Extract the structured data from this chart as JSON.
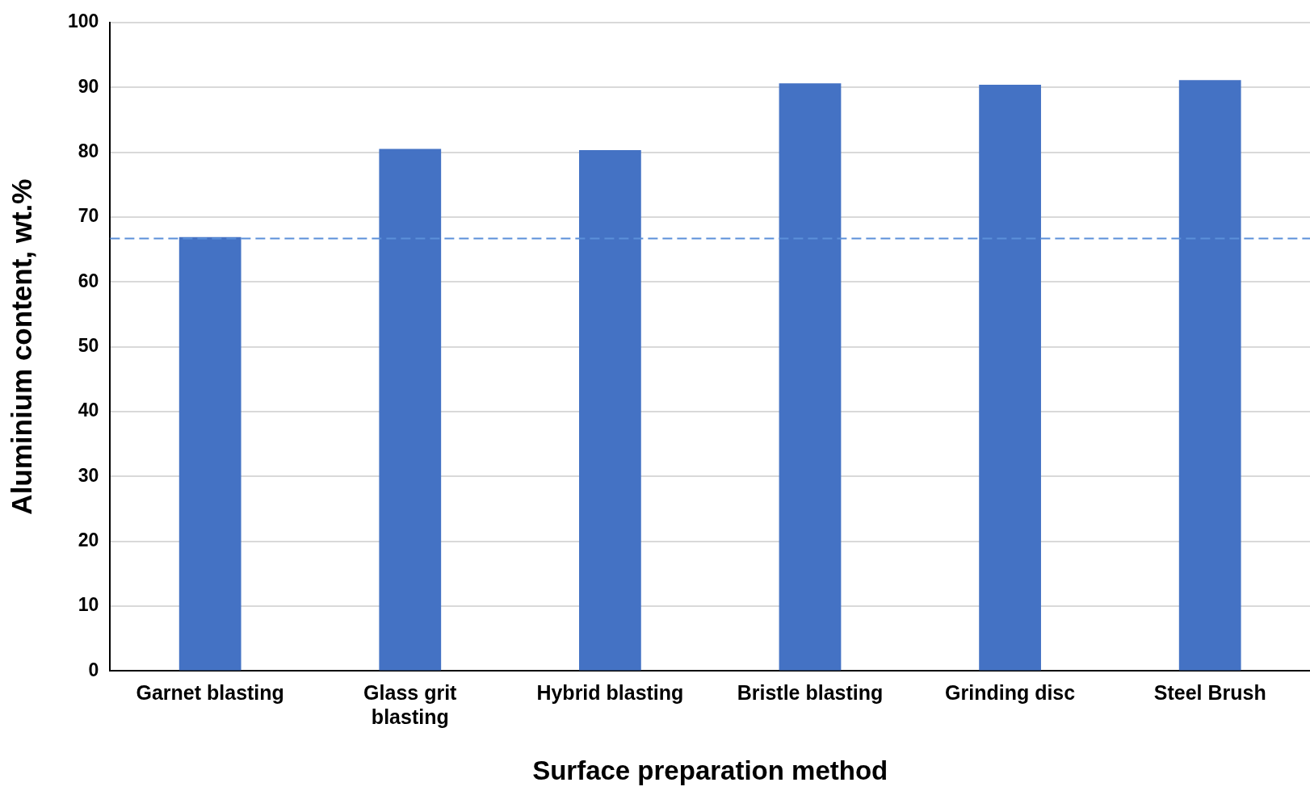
{
  "chart_data": {
    "type": "bar",
    "xlabel": "Surface preparation method",
    "ylabel": "Aluminium content, wt.%",
    "categories": [
      "Garnet blasting",
      "Glass grit blasting",
      "Hybrid blasting",
      "Bristle blasting",
      "Grinding disc",
      "Steel Brush"
    ],
    "values": [
      66.9,
      80.5,
      80.3,
      90.6,
      90.4,
      91.1
    ],
    "color": "#4472c4",
    "ylim": [
      0,
      100
    ],
    "yticks": [
      0,
      10,
      20,
      30,
      40,
      50,
      60,
      70,
      80,
      90,
      100
    ],
    "grid": "y",
    "legend": false,
    "ref_lines": [
      {
        "axis": "y",
        "value": 66.7,
        "color": "#5b8fd9",
        "line_style": "dashed"
      }
    ]
  }
}
